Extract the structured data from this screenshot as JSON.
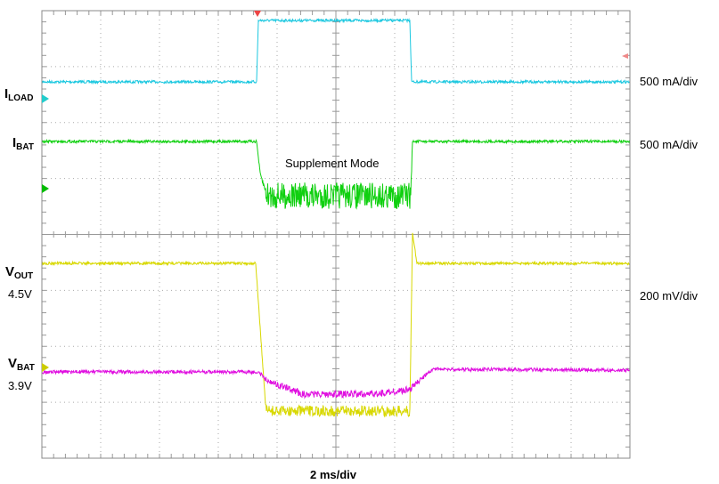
{
  "labels": {
    "iload": {
      "main": "I",
      "sub": "LOAD"
    },
    "ibat": {
      "main": "I",
      "sub": "BAT"
    },
    "vout": {
      "main": "V",
      "sub": "OUT",
      "level": "4.5V"
    },
    "vbat": {
      "main": "V",
      "sub": "BAT",
      "level": "3.9V"
    }
  },
  "scales": [
    "500 mA/div",
    "500 mA/div",
    "200 mV/div"
  ],
  "annotation": "Supplement Mode",
  "timebase": "2 ms/div"
}
